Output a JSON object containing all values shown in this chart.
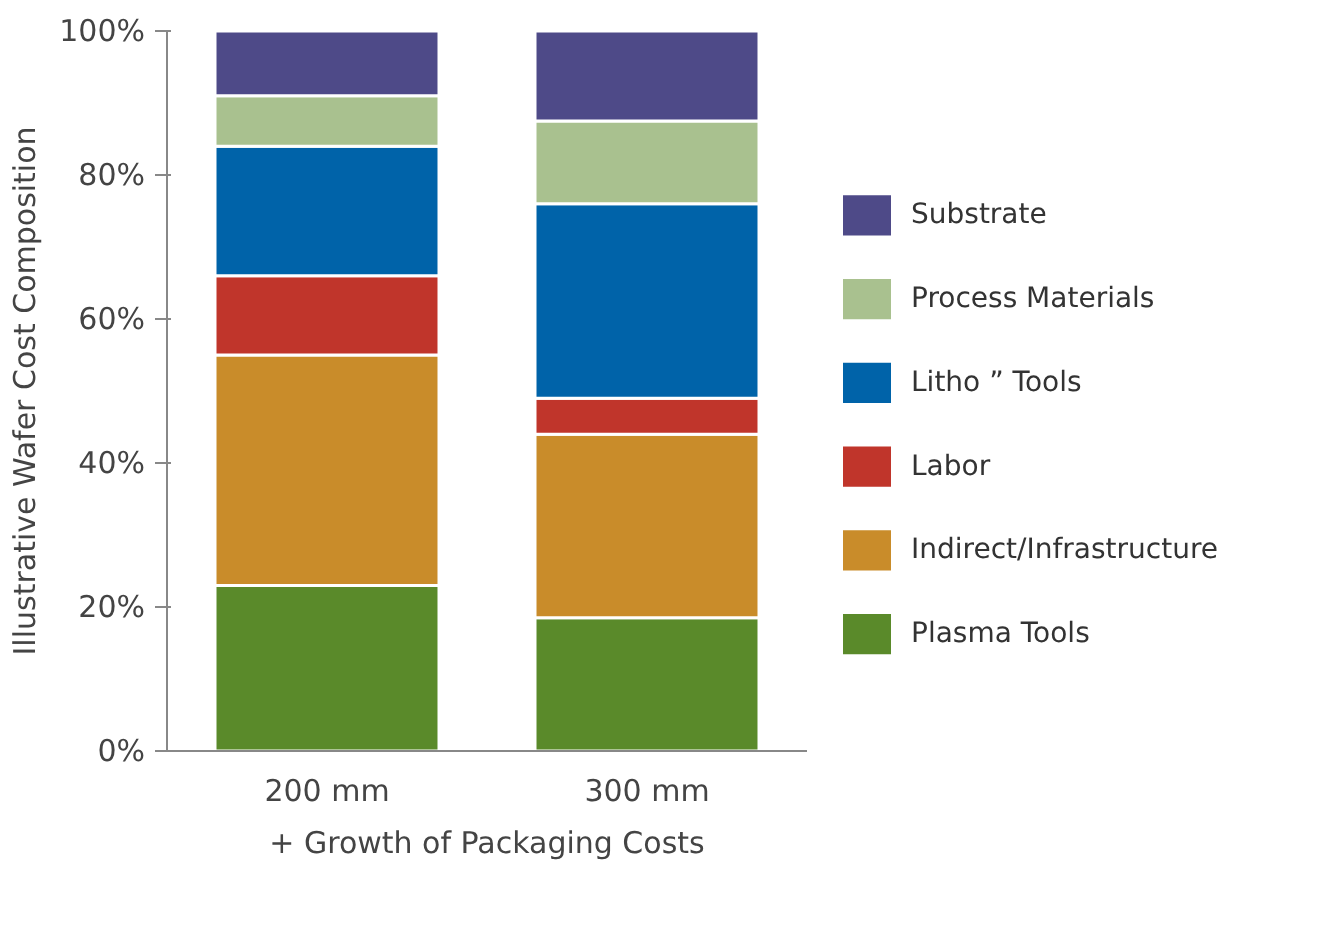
{
  "chart_data": {
    "type": "bar",
    "stacked": true,
    "ylabel": "Illustrative Wafer Cost Composition",
    "xlabel": "+ Growth of Packaging Costs",
    "categories": [
      "200 mm",
      "300 mm"
    ],
    "series": [
      {
        "name": "Plasma Tools",
        "color": "#5a8a2a",
        "values": [
          23,
          18.5
        ]
      },
      {
        "name": "Indirect/Infrastructure",
        "color": "#c98c2a",
        "values": [
          32,
          25.5
        ]
      },
      {
        "name": "Labor",
        "color": "#c0352b",
        "values": [
          11,
          5
        ]
      },
      {
        "name": "Litho ” Tools",
        "color": "#0063a9",
        "values": [
          18,
          27
        ]
      },
      {
        "name": "Process Materials",
        "color": "#a9c18f",
        "values": [
          7,
          11.5
        ]
      },
      {
        "name": "Substrate",
        "color": "#4e4a88",
        "values": [
          9,
          12.5
        ]
      }
    ],
    "ylim": [
      0,
      100
    ],
    "yticks": [
      {
        "value": 0,
        "label": "0%"
      },
      {
        "value": 20,
        "label": "20%"
      },
      {
        "value": 40,
        "label": "40%"
      },
      {
        "value": 60,
        "label": "60%"
      },
      {
        "value": 80,
        "label": "80%"
      },
      {
        "value": 100,
        "label": "100%"
      }
    ],
    "grid": false,
    "legend": "right"
  }
}
